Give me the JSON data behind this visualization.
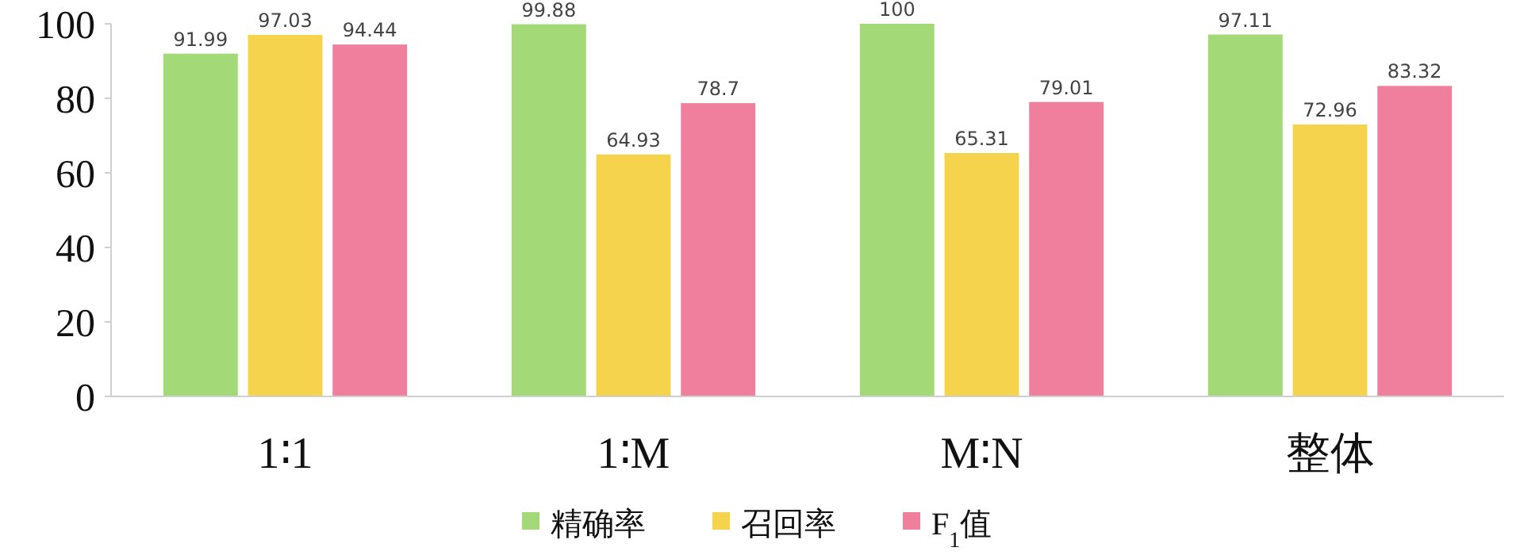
{
  "chart_data": {
    "type": "bar",
    "categories": [
      "1∶1",
      "1∶M",
      "M∶N",
      "整体"
    ],
    "series": [
      {
        "name": "精确率",
        "color": "#a3d977",
        "values": [
          91.99,
          99.88,
          100,
          97.11
        ]
      },
      {
        "name": "召回率",
        "color": "#f6d34c",
        "values": [
          97.03,
          64.93,
          65.31,
          72.96
        ]
      },
      {
        "name": "F$_{1}$值",
        "color": "#ef7f9d",
        "values": [
          94.44,
          78.7,
          79.01,
          83.32
        ]
      }
    ],
    "ylim": [
      0,
      100
    ],
    "yticks": [
      0,
      20,
      40,
      60,
      80,
      100
    ],
    "grid": false,
    "legend": "bottom",
    "data_labels": true
  }
}
